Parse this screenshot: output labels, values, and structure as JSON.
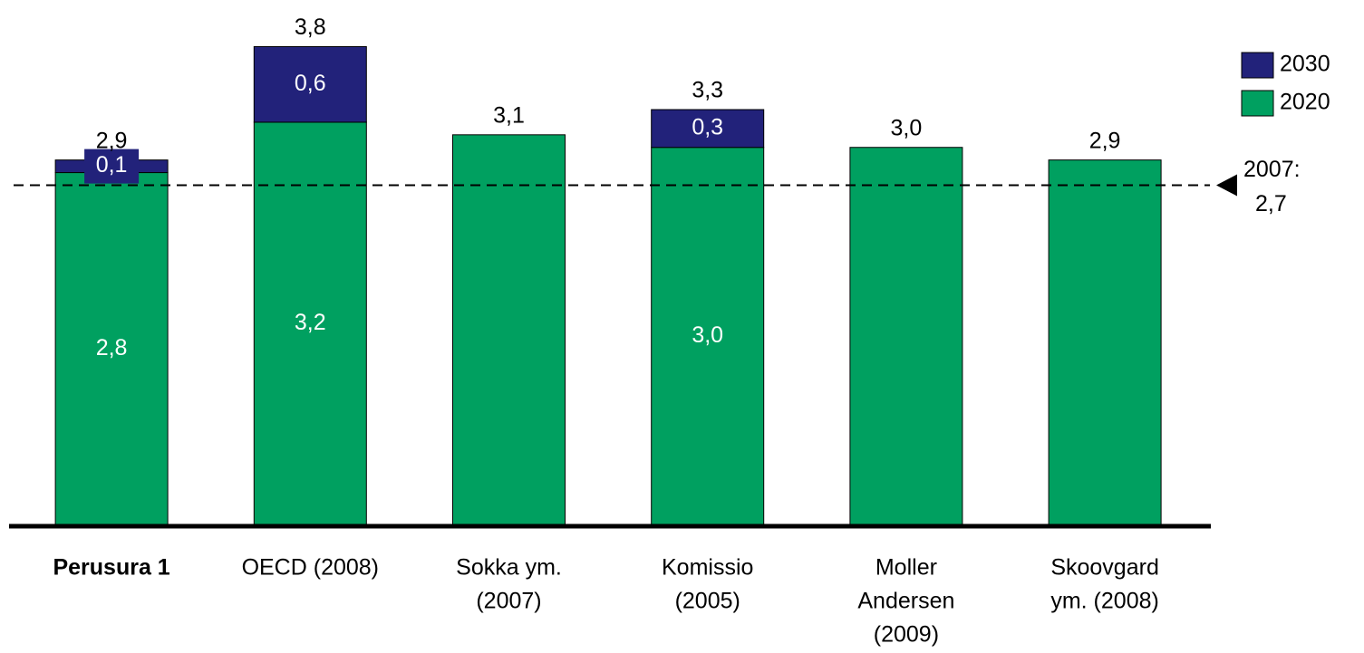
{
  "chart_data": {
    "type": "stacked_bar",
    "categories": [
      [
        "Perusura 1"
      ],
      [
        "OECD (2008)"
      ],
      [
        "Sokka ym.",
        "(2007)"
      ],
      [
        "Komissio",
        "(2005)"
      ],
      [
        "Moller",
        "Andersen",
        "(2009)"
      ],
      [
        "Skoovgard",
        "ym. (2008)"
      ]
    ],
    "series": [
      {
        "name": "2020",
        "color": "#00a060",
        "values": [
          2.8,
          3.2,
          3.1,
          3.0,
          3.0,
          2.9
        ],
        "value_labels": [
          "2,8",
          "3,2",
          "3,1",
          "3,0",
          "3,0",
          "2,9"
        ]
      },
      {
        "name": "2030",
        "color": "#22227a",
        "values": [
          0.1,
          0.6,
          null,
          0.3,
          null,
          null
        ],
        "value_labels": [
          "0,1",
          "0,6",
          null,
          "0,3",
          null,
          null
        ]
      }
    ],
    "totals": [
      2.9,
      3.8,
      null,
      3.3,
      null,
      null
    ],
    "total_labels": [
      "2,9",
      "3,8",
      null,
      "3,3",
      null,
      null
    ],
    "reference_line": {
      "value": 2.7,
      "label": "2007:",
      "value_label": "2,7"
    },
    "ylim": [
      0,
      4.17
    ]
  }
}
